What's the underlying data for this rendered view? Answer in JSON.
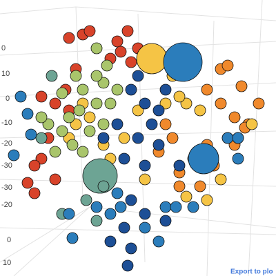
{
  "chart_data": {
    "type": "scatter3d",
    "axis_labels": [
      "0",
      "10",
      "0",
      "-10",
      "-20",
      "-30",
      "-30",
      "-20",
      "0",
      "10"
    ],
    "export_link": "Export to plo",
    "xlim": [
      0,
      400
    ],
    "ylim": [
      400,
      0
    ],
    "series": [
      {
        "color": "#d8432a",
        "points": [
          [
            120,
            50,
            8
          ],
          [
            130,
            45,
            8
          ],
          [
            100,
            55,
            8
          ],
          [
            170,
            60,
            8
          ],
          [
            185,
            45,
            8
          ],
          [
            175,
            75,
            8
          ],
          [
            95,
            130,
            8
          ],
          [
            80,
            150,
            8
          ],
          [
            100,
            160,
            8
          ],
          [
            70,
            200,
            8
          ],
          [
            60,
            230,
            8
          ],
          [
            50,
            240,
            8
          ],
          [
            40,
            265,
            8
          ],
          [
            80,
            260,
            8
          ],
          [
            50,
            280,
            8
          ],
          [
            110,
            100,
            8
          ],
          [
            160,
            85,
            8
          ],
          [
            200,
            70,
            8
          ],
          [
            190,
            90,
            8
          ],
          [
            60,
            140,
            8
          ]
        ]
      },
      {
        "color": "#f0892c",
        "points": [
          [
            300,
            130,
            8
          ],
          [
            320,
            150,
            8
          ],
          [
            340,
            170,
            8
          ],
          [
            360,
            180,
            8
          ],
          [
            330,
            200,
            8
          ],
          [
            300,
            210,
            8
          ],
          [
            280,
            230,
            8
          ],
          [
            260,
            250,
            8
          ],
          [
            250,
            200,
            8
          ],
          [
            240,
            180,
            8
          ],
          [
            320,
            100,
            8
          ],
          [
            330,
            95,
            8
          ],
          [
            350,
            125,
            8
          ],
          [
            375,
            150,
            8
          ],
          [
            355,
            185,
            8
          ],
          [
            310,
            240,
            8
          ],
          [
            290,
            270,
            8
          ],
          [
            260,
            270,
            8
          ],
          [
            230,
            220,
            8
          ],
          [
            340,
            210,
            8
          ]
        ]
      },
      {
        "color": "#f5c445",
        "points": [
          [
            220,
            85,
            22
          ],
          [
            270,
            150,
            8
          ],
          [
            240,
            150,
            8
          ],
          [
            200,
            160,
            8
          ],
          [
            180,
            200,
            8
          ],
          [
            150,
            210,
            8
          ],
          [
            160,
            230,
            8
          ],
          [
            270,
            285,
            8
          ],
          [
            300,
            290,
            8
          ],
          [
            320,
            260,
            8
          ],
          [
            345,
            200,
            8
          ],
          [
            110,
            180,
            8
          ],
          [
            100,
            200,
            8
          ],
          [
            130,
            170,
            8
          ],
          [
            210,
            260,
            8
          ],
          [
            290,
            160,
            8
          ],
          [
            260,
            140,
            8
          ],
          [
            365,
            180,
            8
          ],
          [
            250,
            110,
            8
          ],
          [
            120,
            150,
            8
          ]
        ]
      },
      {
        "color": "#a9c56b",
        "points": [
          [
            110,
            110,
            8
          ],
          [
            120,
            130,
            8
          ],
          [
            140,
            150,
            8
          ],
          [
            150,
            120,
            8
          ],
          [
            100,
            170,
            8
          ],
          [
            90,
            190,
            8
          ],
          [
            130,
            190,
            8
          ],
          [
            70,
            180,
            8
          ],
          [
            60,
            170,
            8
          ],
          [
            140,
            110,
            8
          ],
          [
            160,
            150,
            8
          ],
          [
            120,
            220,
            8
          ],
          [
            80,
            220,
            8
          ],
          [
            150,
            180,
            8
          ],
          [
            115,
            160,
            8
          ],
          [
            140,
            70,
            8
          ],
          [
            155,
            95,
            8
          ],
          [
            90,
            135,
            8
          ],
          [
            170,
            130,
            8
          ],
          [
            105,
            210,
            8
          ]
        ]
      },
      {
        "color": "#6da494",
        "points": [
          [
            145,
            255,
            25
          ],
          [
            125,
            290,
            8
          ],
          [
            90,
            310,
            8
          ],
          [
            140,
            320,
            8
          ],
          [
            60,
            200,
            8
          ],
          [
            75,
            110,
            8
          ],
          [
            150,
            270,
            8
          ]
        ]
      },
      {
        "color": "#1d4f96",
        "points": [
          [
            190,
            130,
            8
          ],
          [
            210,
            150,
            8
          ],
          [
            220,
            180,
            8
          ],
          [
            200,
            200,
            8
          ],
          [
            230,
            210,
            8
          ],
          [
            180,
            230,
            8
          ],
          [
            210,
            240,
            8
          ],
          [
            240,
            130,
            8
          ],
          [
            170,
            180,
            8
          ],
          [
            190,
            290,
            8
          ],
          [
            210,
            310,
            8
          ],
          [
            180,
            330,
            8
          ],
          [
            160,
            350,
            8
          ],
          [
            190,
            360,
            8
          ],
          [
            185,
            385,
            8
          ],
          [
            240,
            320,
            8
          ],
          [
            260,
            240,
            8
          ],
          [
            150,
            200,
            8
          ],
          [
            230,
            160,
            8
          ],
          [
            200,
            110,
            8
          ]
        ]
      },
      {
        "color": "#2b7dbb",
        "points": [
          [
            265,
            90,
            28
          ],
          [
            295,
            230,
            22
          ],
          [
            40,
            165,
            8
          ],
          [
            30,
            140,
            8
          ],
          [
            45,
            195,
            8
          ],
          [
            140,
            300,
            8
          ],
          [
            160,
            310,
            8
          ],
          [
            175,
            300,
            8
          ],
          [
            170,
            280,
            8
          ],
          [
            210,
            330,
            8
          ],
          [
            240,
            300,
            8
          ],
          [
            255,
            300,
            8
          ],
          [
            280,
            300,
            8
          ],
          [
            230,
            350,
            8
          ],
          [
            330,
            200,
            8
          ],
          [
            345,
            200,
            8
          ],
          [
            345,
            230,
            8
          ],
          [
            100,
            310,
            8
          ],
          [
            105,
            345,
            8
          ],
          [
            20,
            225,
            8
          ]
        ]
      }
    ]
  }
}
